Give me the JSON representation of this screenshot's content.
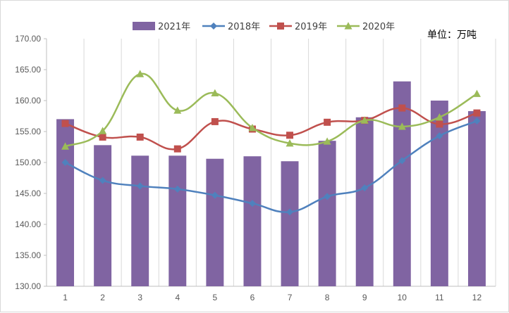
{
  "chart_data": {
    "type": "bar+line",
    "unit_label": "单位：万吨",
    "categories": [
      "1",
      "2",
      "3",
      "4",
      "5",
      "6",
      "7",
      "8",
      "9",
      "10",
      "11",
      "12"
    ],
    "ylim": [
      130,
      170
    ],
    "yticks": [
      "130.00",
      "135.00",
      "140.00",
      "145.00",
      "150.00",
      "155.00",
      "160.00",
      "165.00",
      "170.00"
    ],
    "ytick_values": [
      130,
      135,
      140,
      145,
      150,
      155,
      160,
      165,
      170
    ],
    "grid": "vertical",
    "legend_position": "top",
    "bar_series": {
      "name": "2021年",
      "color": "#8064a2",
      "values": [
        157.0,
        152.8,
        151.1,
        151.1,
        150.6,
        151.0,
        150.2,
        153.5,
        157.3,
        163.1,
        160.0,
        158.3
      ]
    },
    "line_series": [
      {
        "name": "2018年",
        "color": "#4f81bd",
        "marker": "diamond",
        "values": [
          150.0,
          147.1,
          146.2,
          145.7,
          144.7,
          143.4,
          142.0,
          144.5,
          145.9,
          150.3,
          154.3,
          156.7
        ]
      },
      {
        "name": "2019年",
        "color": "#c0504d",
        "marker": "square",
        "values": [
          156.3,
          154.1,
          154.1,
          152.2,
          156.6,
          155.4,
          154.4,
          156.5,
          156.8,
          158.8,
          156.2,
          158.0
        ]
      },
      {
        "name": "2020年",
        "color": "#9bbb59",
        "marker": "triangle",
        "values": [
          152.6,
          155.1,
          164.3,
          158.4,
          161.2,
          155.6,
          153.1,
          153.4,
          156.8,
          155.8,
          157.3,
          161.1
        ]
      }
    ],
    "legend_order": [
      "2021年",
      "2018年",
      "2019年",
      "2020年"
    ]
  }
}
